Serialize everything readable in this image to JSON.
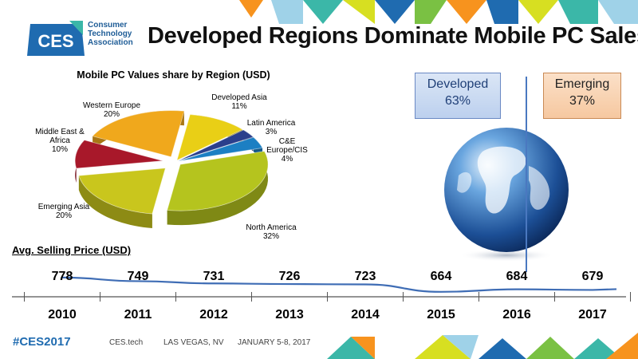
{
  "header": {
    "logo_mark": "CES",
    "logo_lines": [
      "Consumer",
      "Technology",
      "Association"
    ],
    "title": "Developed Regions Dominate Mobile PC Sales"
  },
  "chart_data": [
    {
      "type": "pie",
      "title": "Mobile PC Values share by Region (USD)",
      "slices": [
        {
          "label": "Developed Asia",
          "pct_text": "11%",
          "value": 11,
          "color": "#e9cf16"
        },
        {
          "label": "Latin America",
          "pct_text": "3%",
          "value": 3,
          "color": "#2b3f8c"
        },
        {
          "label": "C&E Europe/CIS",
          "pct_text": "4%",
          "value": 4,
          "color": "#1c7fc3"
        },
        {
          "label": "North America",
          "pct_text": "32%",
          "value": 32,
          "color": "#b5c41e"
        },
        {
          "label": "Emerging Asia",
          "pct_text": "20%",
          "value": 20,
          "color": "#c9c61d"
        },
        {
          "label": "Middle East & Africa",
          "pct_text": "10%",
          "value": 10,
          "color": "#a8182a"
        },
        {
          "label": "Western Europe",
          "pct_text": "20%",
          "value": 20,
          "color": "#f0a81c"
        }
      ]
    },
    {
      "type": "line",
      "title": "Avg. Selling Price (USD)",
      "x": [
        "2010",
        "2011",
        "2012",
        "2013",
        "2014",
        "2015",
        "2016",
        "2017"
      ],
      "values": [
        778,
        749,
        731,
        726,
        723,
        664,
        684,
        679
      ],
      "line_color": "#3f6db5"
    }
  ],
  "split": {
    "developed_label": "Developed",
    "developed_pct": "63%",
    "emerging_label": "Emerging",
    "emerging_pct": "37%"
  },
  "footer": {
    "hashtag": "#CES2017",
    "site": "CES.tech",
    "location": "LAS VEGAS, NV",
    "dates": "JANUARY 5-8, 2017"
  },
  "colors": {
    "brand_blue": "#1f6bb0",
    "accent_teal": "#3bb7a8",
    "accent_orange": "#f7931e",
    "accent_yellow": "#d7df21"
  }
}
